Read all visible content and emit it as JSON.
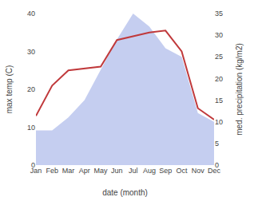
{
  "chart_data": {
    "type": "line",
    "categories": [
      "Jan",
      "Feb",
      "Mar",
      "Apr",
      "May",
      "Jun",
      "Jul",
      "Aug",
      "Sep",
      "Oct",
      "Nov",
      "Dec"
    ],
    "series": [
      {
        "type": "area",
        "axis": "y2",
        "color": "#c5cef0",
        "values": [
          8,
          8,
          11,
          15,
          22,
          29,
          35,
          32,
          27,
          25,
          12,
          10
        ]
      },
      {
        "type": "line",
        "color": "#c0393b",
        "values": [
          13,
          21,
          25,
          25.5,
          26,
          33,
          34,
          35,
          35.5,
          30,
          15,
          12
        ]
      }
    ],
    "xlabel": "date (month)",
    "ylabel": "max temp (C)",
    "y2label": "med. precipitation (kg/m2)",
    "ylim": [
      0,
      40
    ],
    "yticks": [
      0,
      10,
      20,
      30,
      40
    ],
    "y2lim": [
      0,
      35
    ],
    "y2ticks": [
      0,
      5,
      10,
      15,
      20,
      25,
      30,
      35
    ],
    "grid": false
  }
}
